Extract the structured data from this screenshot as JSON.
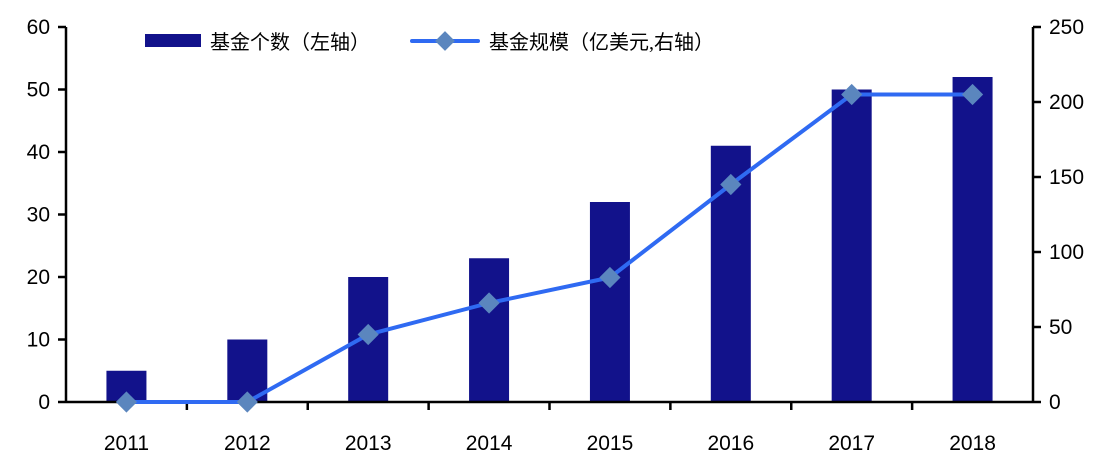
{
  "chart_data": {
    "type": "combo",
    "title": "",
    "categories": [
      "2011",
      "2012",
      "2013",
      "2014",
      "2015",
      "2016",
      "2017",
      "2018"
    ],
    "series": [
      {
        "name": "基金个数（左轴）",
        "type": "bar",
        "axis": "left",
        "color": "#12128b",
        "values": [
          5,
          10,
          20,
          23,
          32,
          41,
          50,
          52
        ]
      },
      {
        "name": "基金规模（亿美元,右轴）",
        "type": "line",
        "axis": "right",
        "color": "#2f6af2",
        "marker": "diamond",
        "marker_color": "#5b86be",
        "values": [
          0,
          0,
          45,
          66,
          83,
          145,
          205,
          205
        ]
      }
    ],
    "left_axis": {
      "min": 0,
      "max": 60,
      "step": 10,
      "ticks": [
        0,
        10,
        20,
        30,
        40,
        50,
        60
      ]
    },
    "right_axis": {
      "min": 0,
      "max": 250,
      "step": 50,
      "ticks": [
        0,
        50,
        100,
        150,
        200,
        250
      ]
    },
    "grid": false,
    "legend_position": "top",
    "axis_color": "#000000",
    "tick_label_color": "#000000",
    "background": "#ffffff"
  }
}
